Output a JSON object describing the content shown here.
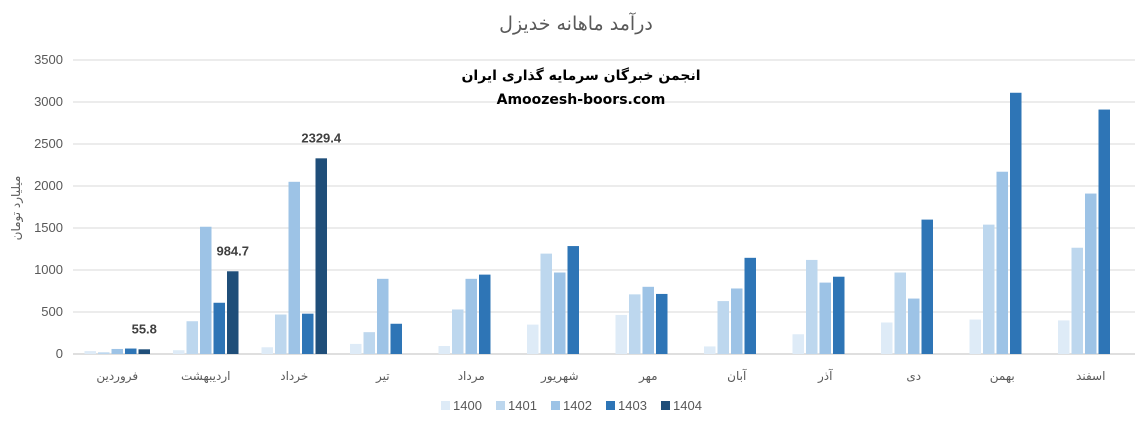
{
  "chart_data": {
    "type": "bar",
    "title": "درآمد ماهانه خدیزل",
    "watermark": {
      "line1": "انجمن خبرگان سرمایه گذاری ایران",
      "line2": "Amoozesh-boors.com"
    },
    "ylabel": "میلیارد تومان",
    "xlabel": "",
    "ylim": [
      0,
      3500
    ],
    "yticks": [
      "0",
      "500",
      "1000",
      "1500",
      "2000",
      "2500",
      "3000",
      "3500"
    ],
    "grid": true,
    "legend_position": "bottom",
    "categories": [
      "فروردین",
      "اردیبهشت",
      "خرداد",
      "تیر",
      "مرداد",
      "شهریور",
      "مهر",
      "آبان",
      "آذر",
      "دی",
      "بهمن",
      "اسفند"
    ],
    "series": [
      {
        "name": "1400",
        "color": "#deebf7",
        "values": [
          35,
          45,
          80,
          120,
          95,
          350,
          465,
          90,
          235,
          375,
          410,
          400
        ]
      },
      {
        "name": "1401",
        "color": "#bdd7ee",
        "values": [
          20,
          390,
          470,
          260,
          530,
          1195,
          710,
          630,
          1120,
          970,
          1540,
          1265
        ]
      },
      {
        "name": "1402",
        "color": "#9dc3e6",
        "values": [
          60,
          1515,
          2050,
          895,
          895,
          970,
          800,
          780,
          850,
          660,
          2170,
          1910
        ]
      },
      {
        "name": "1403",
        "color": "#2e75b6",
        "values": [
          65,
          610,
          480,
          360,
          945,
          1285,
          715,
          1145,
          920,
          1600,
          3110,
          2910
        ]
      },
      {
        "name": "1404",
        "color": "#1f4e79",
        "values": [
          55.8,
          984.7,
          2329.4,
          null,
          null,
          null,
          null,
          null,
          null,
          null,
          null,
          null
        ]
      }
    ],
    "data_labels": [
      {
        "series": "1404",
        "category": "فروردین",
        "text": "55.8"
      },
      {
        "series": "1404",
        "category": "اردیبهشت",
        "text": "984.7"
      },
      {
        "series": "1404",
        "category": "خرداد",
        "text": "2329.4"
      }
    ]
  }
}
